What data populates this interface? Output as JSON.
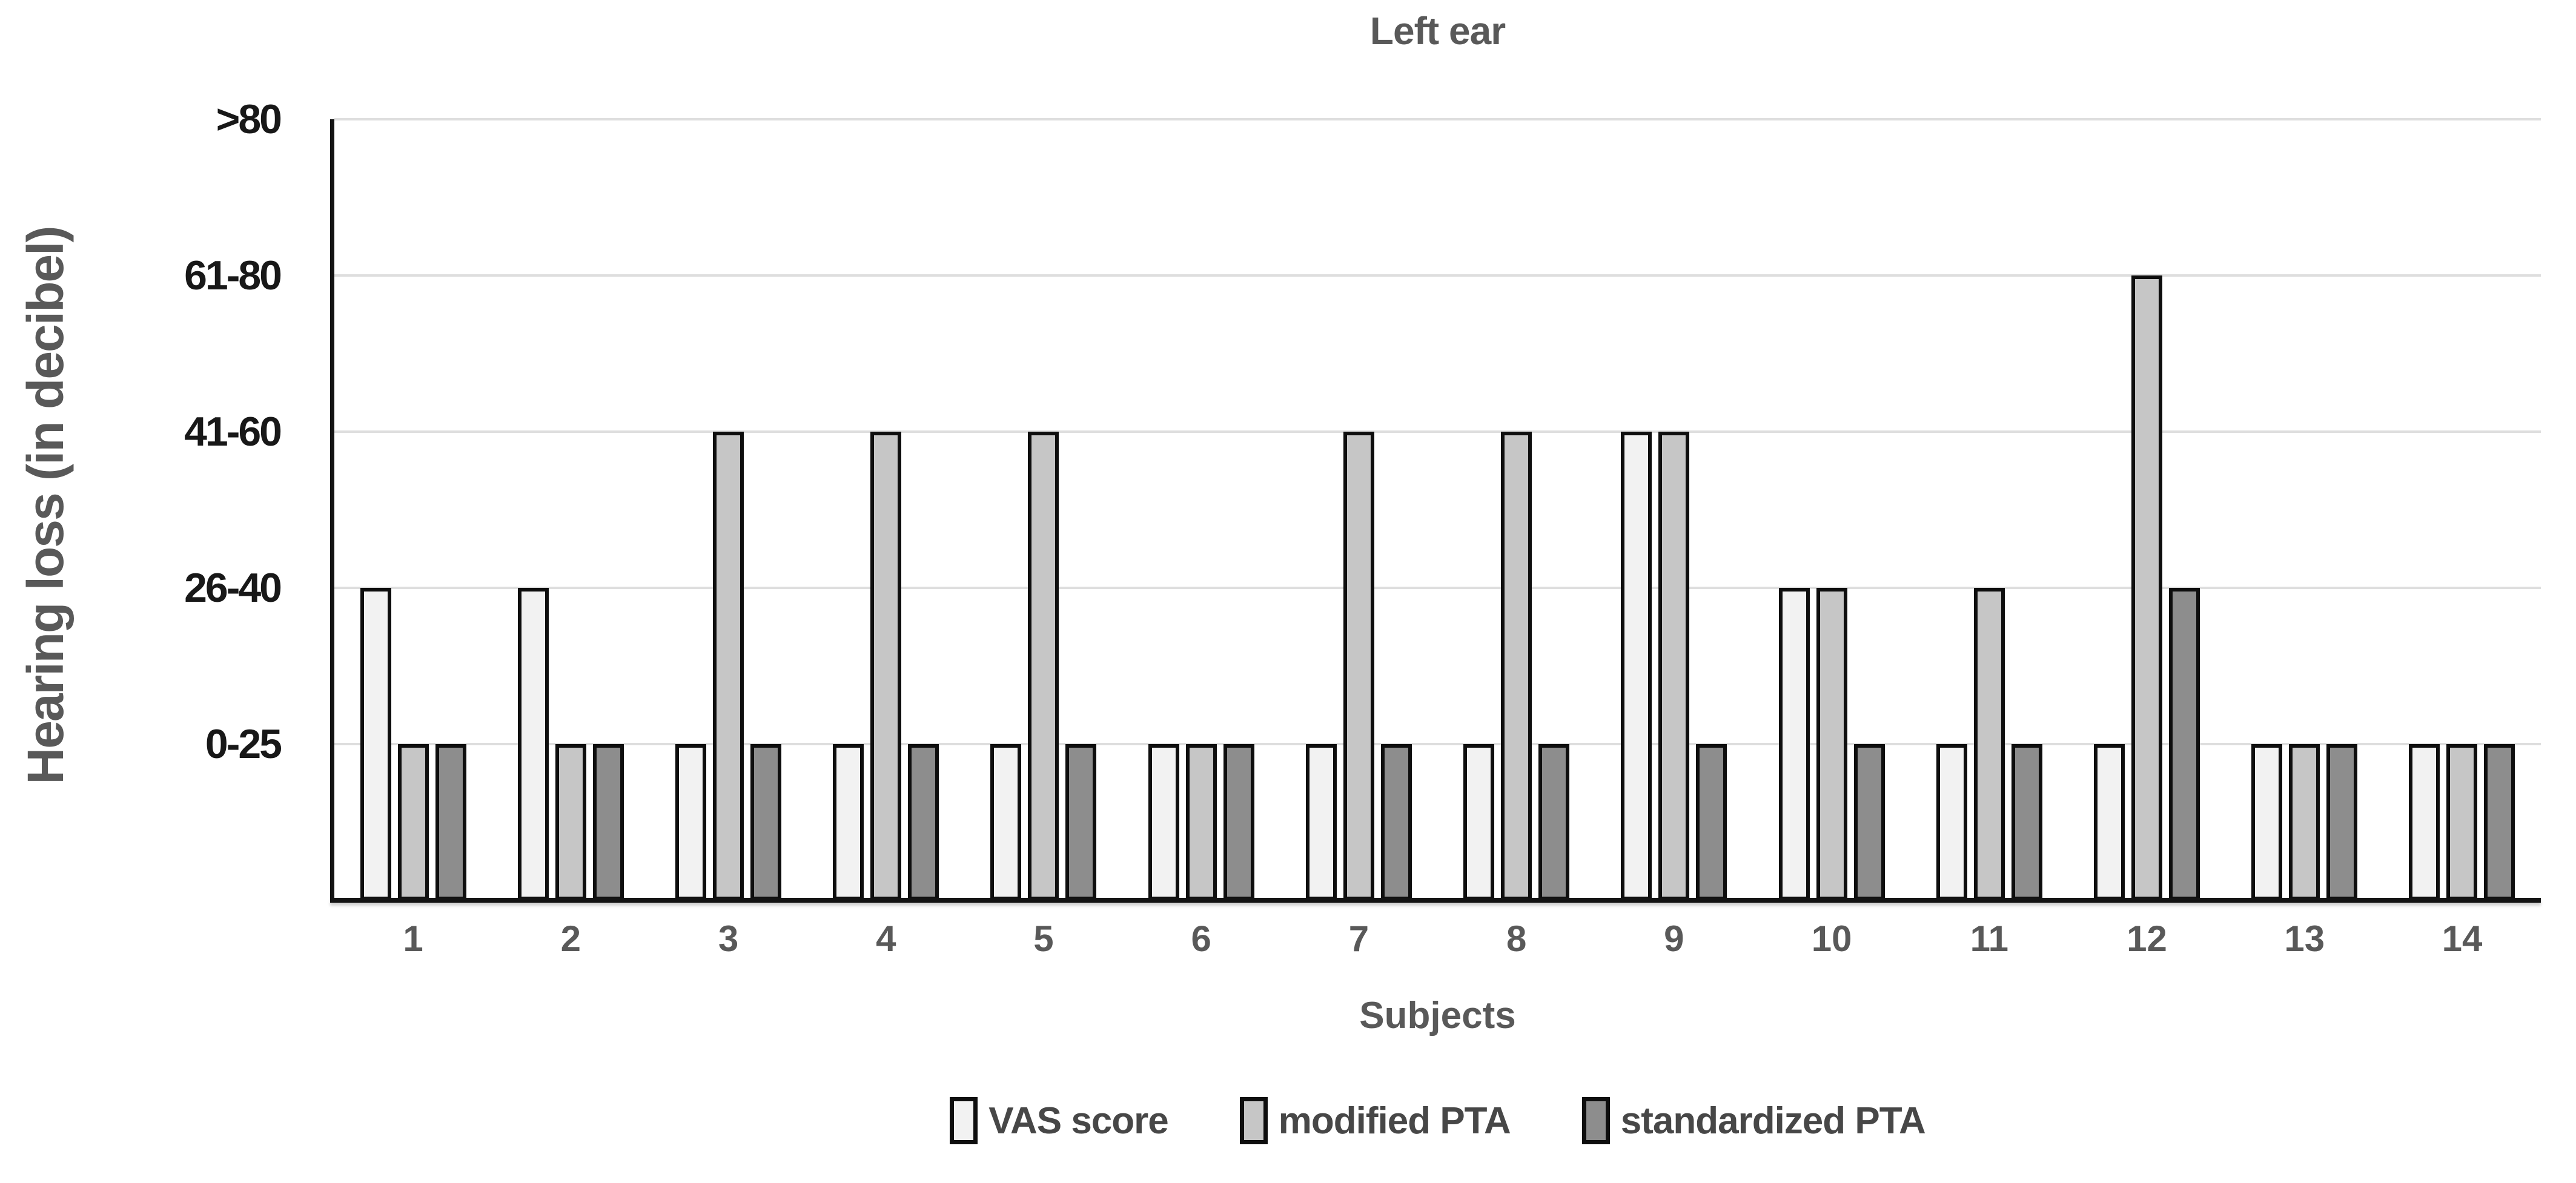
{
  "chart": {
    "title": "Left ear",
    "x_axis_label": "Subjects",
    "y_axis_label": "Hearing loss (in decibel)"
  },
  "chart_data": {
    "type": "bar",
    "title": "Left ear",
    "xlabel": "Subjects",
    "ylabel": "Hearing loss (in decibel)",
    "categories": [
      "1",
      "2",
      "3",
      "4",
      "5",
      "6",
      "7",
      "8",
      "9",
      "10",
      "11",
      "12",
      "13",
      "14"
    ],
    "y_bands": [
      "0-25",
      "26-40",
      "41-60",
      "61-80",
      ">80"
    ],
    "grid": true,
    "legend_position": "bottom",
    "series": [
      {
        "name": "VAS score",
        "color": "#f2f2f2",
        "values": [
          "26-40",
          "26-40",
          "0-25",
          "0-25",
          "0-25",
          "0-25",
          "0-25",
          "0-25",
          "41-60",
          "26-40",
          "0-25",
          "0-25",
          "0-25",
          "0-25"
        ]
      },
      {
        "name": "modified PTA",
        "color": "#c6c6c6",
        "values": [
          "0-25",
          "0-25",
          "41-60",
          "41-60",
          "41-60",
          "0-25",
          "41-60",
          "41-60",
          "41-60",
          "26-40",
          "26-40",
          "61-80",
          "0-25",
          "0-25"
        ]
      },
      {
        "name": "standardized PTA",
        "color": "#8d8d8d",
        "values": [
          "0-25",
          "0-25",
          "0-25",
          "0-25",
          "0-25",
          "0-25",
          "0-25",
          "0-25",
          "0-25",
          "0-25",
          "0-25",
          "26-40",
          "0-25",
          "0-25"
        ]
      }
    ],
    "colors": {
      "bar_border": "#0e0e0e",
      "gridline": "#dedede",
      "axis_line": "#141414",
      "title_text": "#595959",
      "y_tick_text": "#181818",
      "category_text": "#595959",
      "legend_text": "#474747",
      "background": "#ffffff"
    }
  }
}
